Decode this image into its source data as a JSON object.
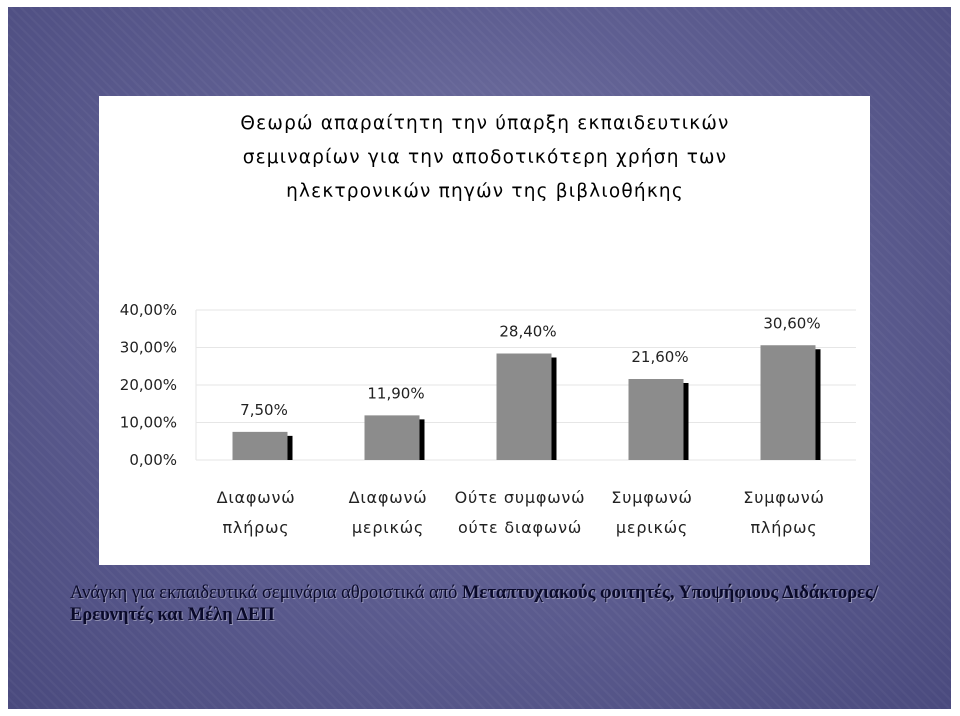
{
  "chart_data": {
    "type": "bar",
    "title_lines": [
      "Θεωρώ απαραίτητη την ύπαρξη εκπαιδευτικών",
      "σεμιναρίων για την αποδοτικότερη χρήση των",
      "ηλεκτρονικών πηγών της βιβλιοθήκης"
    ],
    "categories": [
      [
        "Διαφωνώ",
        "πλήρως"
      ],
      [
        "Διαφωνώ",
        "μερικώς"
      ],
      [
        "Ούτε συμφωνώ",
        "ούτε διαφωνώ"
      ],
      [
        "Συμφωνώ",
        "μερικώς"
      ],
      [
        "Συμφωνώ",
        "πλήρως"
      ]
    ],
    "values": [
      7.5,
      11.9,
      28.4,
      21.6,
      30.6
    ],
    "data_labels": [
      "7,50%",
      "11,90%",
      "28,40%",
      "21,60%",
      "30,60%"
    ],
    "y_ticks": [
      "0,00%",
      "10,00%",
      "20,00%",
      "30,00%",
      "40,00%"
    ],
    "ylim": [
      0,
      40
    ],
    "grid": true,
    "bar_color": "#8c8c8c",
    "shadow_color": "#000000"
  },
  "caption": {
    "normal": "Ανάγκη για εκπαιδευτικά σεμινάρια αθροιστικά από ",
    "bold": "Μεταπτυχιακούς φοιτητές, Υποψήφιους Διδάκτορες/Ερευνητές και Μέλη ΔΕΠ"
  }
}
